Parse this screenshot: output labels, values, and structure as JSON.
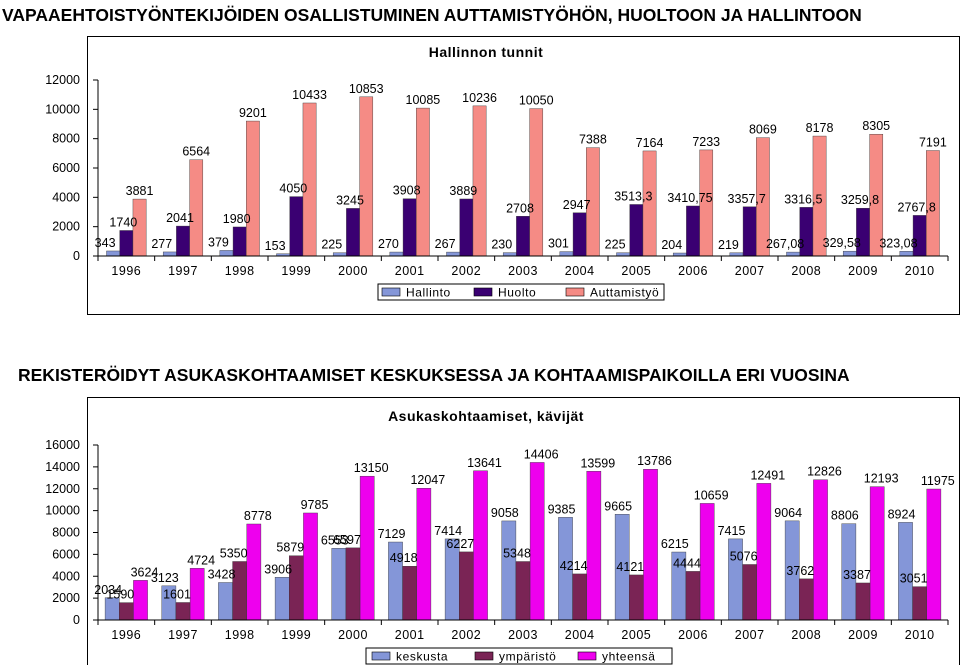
{
  "headings": {
    "top": "VAPAAEHTOISTYÖNTEKIJÖIDEN OSALLISTUMINEN AUTTAMISTYÖHÖN, HUOLTOON JA HALLINTOON",
    "bottom": "REKISTERÖIDYT ASUKASKOHTAAMISET KESKUKSESSA JA KOHTAAMISPAIKOILLA ERI VUOSINA"
  },
  "chart_data": [
    {
      "type": "bar",
      "title": "Hallinnon tunnit",
      "categories": [
        "1996",
        "1997",
        "1998",
        "1999",
        "2000",
        "2001",
        "2002",
        "2003",
        "2004",
        "2005",
        "2006",
        "2007",
        "2008",
        "2009",
        "2010"
      ],
      "series": [
        {
          "name": "Hallinto",
          "color": "#8496d8",
          "values": [
            343,
            277,
            379,
            153,
            225,
            270,
            267,
            230,
            301,
            225,
            204,
            219,
            267.08,
            329.58,
            323.08
          ],
          "labels": [
            "343",
            "277",
            "379",
            "153",
            "225",
            "270",
            "267",
            "230",
            "301",
            "225",
            "204",
            "219",
            "267,08",
            "329,58",
            "323,08"
          ]
        },
        {
          "name": "Huolto",
          "color": "#3a0072",
          "values": [
            1740,
            2041,
            1980,
            4050,
            3245,
            3908,
            3889,
            2708,
            2947,
            3513.3,
            3410.75,
            3357.7,
            3316.5,
            3259.8,
            2767.8
          ],
          "labels": [
            "1740",
            "2041",
            "1980",
            "4050",
            "3245",
            "3908",
            "3889",
            "2708",
            "2947",
            "3513,3",
            "3410,75",
            "3357,7",
            "3316,5",
            "3259,8",
            "2767,8"
          ]
        },
        {
          "name": "Auttamistyö",
          "color": "#f58b85",
          "values": [
            3881,
            6564,
            9201,
            10433,
            10853,
            10085,
            10236,
            10050,
            7388,
            7164,
            7233,
            8069,
            8178,
            8305,
            7191
          ],
          "labels": [
            "3881",
            "6564",
            "9201",
            "10433",
            "10853",
            "10085",
            "10236",
            "10050",
            "7388",
            "7164",
            "7233",
            "8069",
            "8178",
            "8305",
            "7191"
          ]
        }
      ],
      "ylim": [
        0,
        12000
      ],
      "yticks": [
        0,
        2000,
        4000,
        6000,
        8000,
        10000,
        12000
      ],
      "legend": "bottom"
    },
    {
      "type": "bar",
      "title": "Asukaskohtaamiset, kävijät",
      "categories": [
        "1996",
        "1997",
        "1998",
        "1999",
        "2000",
        "2001",
        "2002",
        "2003",
        "2004",
        "2005",
        "2006",
        "2007",
        "2008",
        "2009",
        "2010"
      ],
      "series": [
        {
          "name": "keskusta",
          "color": "#8496d8",
          "values": [
            2034,
            3123,
            3428,
            3906,
            6553,
            7129,
            7414,
            9058,
            9385,
            9665,
            6215,
            7415,
            9064,
            8806,
            8924
          ],
          "labels": [
            "2034",
            "3123",
            "3428",
            "3906",
            "6553",
            "7129",
            "7414",
            "9058",
            "9385",
            "9665",
            "6215",
            "7415",
            "9064",
            "8806",
            "8924"
          ]
        },
        {
          "name": "ympäristö",
          "color": "#7a2455",
          "values": [
            1590,
            1601,
            5350,
            5879,
            6597,
            4918,
            6227,
            5348,
            4214,
            4121,
            4444,
            5076,
            3762,
            3387,
            3051
          ],
          "labels": [
            "1590",
            "1601",
            "5350",
            "5879",
            "6597",
            "4918",
            "6227",
            "5348",
            "4214",
            "4121",
            "4444",
            "5076",
            "3762",
            "3387",
            "3051"
          ]
        },
        {
          "name": "yhteensä",
          "color": "#ee00ee",
          "values": [
            3624,
            4724,
            8778,
            9785,
            13150,
            12047,
            13641,
            14406,
            13599,
            13786,
            10659,
            12491,
            12826,
            12193,
            11975
          ],
          "labels": [
            "3624",
            "4724",
            "8778",
            "9785",
            "13150",
            "12047",
            "13641",
            "14406",
            "13599",
            "13786",
            "10659",
            "12491",
            "12826",
            "12193",
            "11975"
          ]
        }
      ],
      "ylim": [
        0,
        16000
      ],
      "yticks": [
        0,
        2000,
        4000,
        6000,
        8000,
        10000,
        12000,
        14000,
        16000
      ],
      "legend": "bottom"
    }
  ]
}
